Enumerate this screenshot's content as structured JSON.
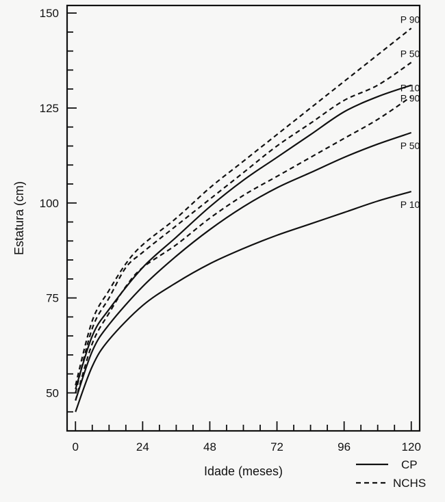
{
  "chart_data": {
    "type": "line",
    "title": "",
    "xlabel": "Idade (meses)",
    "ylabel": "Estatura (cm)",
    "xlim": [
      -3,
      123
    ],
    "ylim": [
      40,
      152
    ],
    "xticks": [
      0,
      24,
      48,
      72,
      96,
      120
    ],
    "xtick_labels": [
      "0",
      "24",
      "48",
      "72",
      "96",
      "120"
    ],
    "yticks": [
      50,
      75,
      100,
      125,
      150
    ],
    "ytick_labels": [
      "50",
      "75",
      "100",
      "125",
      "150"
    ],
    "x_minor_step": 6,
    "y_minor_step": 5,
    "grid": false,
    "legend": {
      "position": "bottom-right",
      "entries": [
        {
          "label": "CP",
          "style": "solid"
        },
        {
          "label": "NCHS",
          "style": "dashed"
        }
      ]
    },
    "series": [
      {
        "name": "CP P 90",
        "group": "CP",
        "style": "solid",
        "label": "P 90",
        "x": [
          0,
          6,
          12,
          24,
          36,
          48,
          60,
          72,
          84,
          96,
          108,
          120
        ],
        "y": [
          51,
          65,
          72,
          83,
          91,
          99,
          106,
          112,
          118,
          124,
          128,
          131
        ]
      },
      {
        "name": "CP P 50",
        "group": "CP",
        "style": "solid",
        "label": "P 50",
        "x": [
          0,
          6,
          12,
          24,
          36,
          48,
          60,
          72,
          84,
          96,
          108,
          120
        ],
        "y": [
          48,
          61,
          68,
          78,
          86,
          93,
          99,
          104,
          108,
          112,
          115.5,
          118.5
        ]
      },
      {
        "name": "CP P 10",
        "group": "CP",
        "style": "solid",
        "label": "P 10",
        "x": [
          0,
          6,
          12,
          24,
          36,
          48,
          60,
          72,
          84,
          96,
          108,
          120
        ],
        "y": [
          45,
          57,
          64,
          73,
          79,
          84,
          88,
          91.5,
          94.5,
          97.5,
          100.5,
          103
        ]
      },
      {
        "name": "NCHS P 90",
        "group": "NCHS",
        "style": "dashed",
        "label": "P 90",
        "x": [
          0,
          6,
          12,
          18,
          24,
          36,
          48,
          60,
          72,
          84,
          96,
          108,
          120
        ],
        "y": [
          52,
          69,
          77,
          84,
          89,
          96,
          104,
          111,
          118,
          125,
          132,
          139,
          146
        ]
      },
      {
        "name": "NCHS P 50",
        "group": "NCHS",
        "style": "dashed",
        "label": "P 50",
        "x": [
          0,
          6,
          12,
          18,
          24,
          36,
          48,
          60,
          72,
          84,
          96,
          108,
          120
        ],
        "y": [
          50,
          67,
          75,
          83,
          87,
          94,
          101,
          108,
          115,
          121,
          127,
          131,
          137
        ]
      },
      {
        "name": "NCHS P 10",
        "group": "NCHS",
        "style": "dashed",
        "label": "P 10",
        "x": [
          0,
          6,
          12,
          18,
          24,
          36,
          48,
          60,
          72,
          84,
          96,
          108,
          120
        ],
        "y": [
          48,
          63,
          71,
          78,
          83,
          89,
          96,
          102,
          107,
          112,
          117,
          122,
          128
        ]
      }
    ]
  }
}
